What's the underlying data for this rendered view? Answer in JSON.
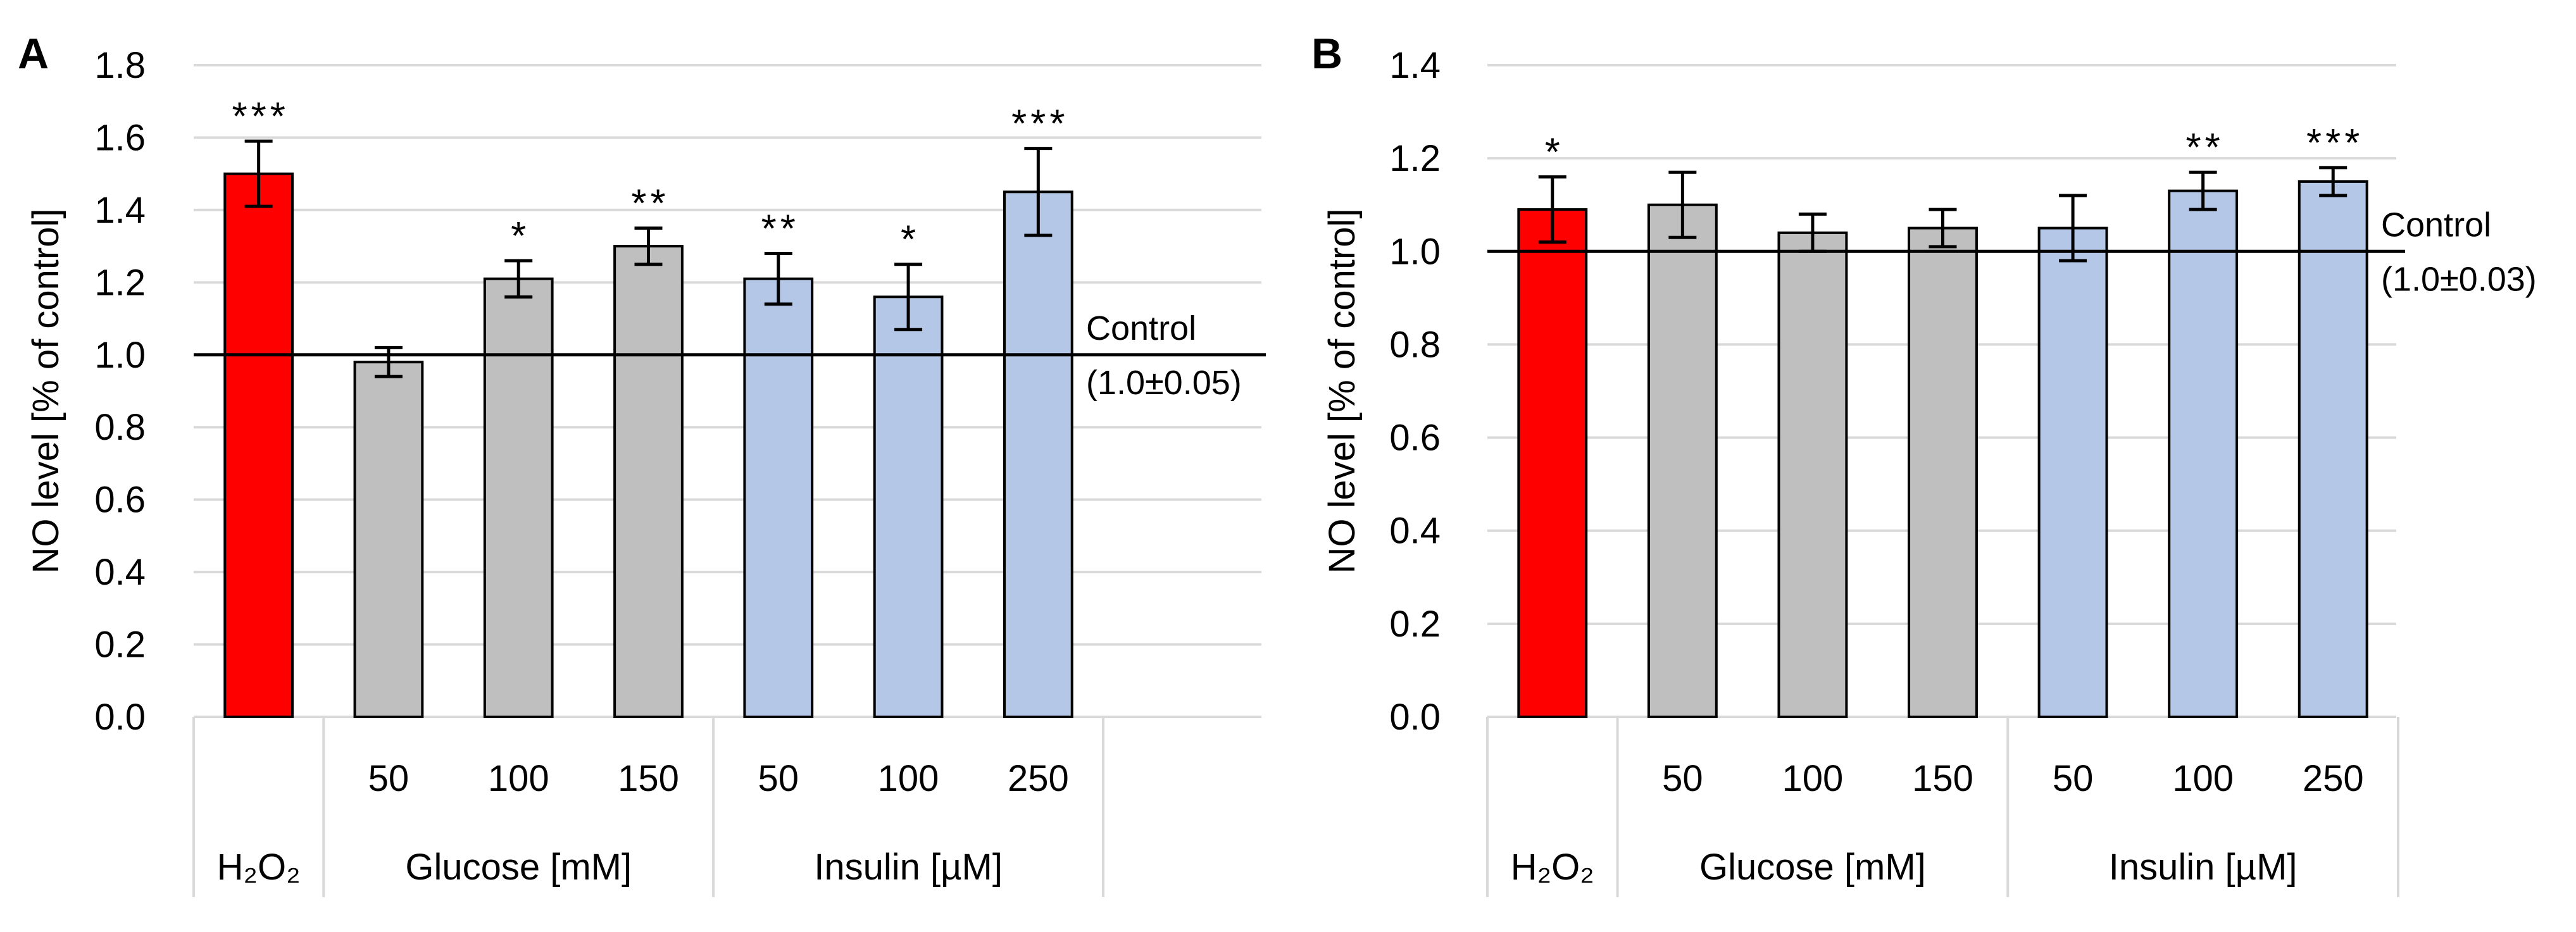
{
  "colors": {
    "h2o2": "#ff0000",
    "glucose": "#bfbfbf",
    "insulin": "#b4c7e7",
    "grid": "#d9d9d9",
    "axis": "#000000"
  },
  "chart_data": [
    {
      "panel": "A",
      "type": "bar",
      "title": "",
      "xlabel": "",
      "ylabel": "NO level [% of control]",
      "ylim": [
        0.0,
        1.8
      ],
      "yticks": [
        "0.0",
        "0.2",
        "0.4",
        "0.6",
        "0.8",
        "1.0",
        "1.2",
        "1.4",
        "1.6",
        "1.8"
      ],
      "grid": true,
      "groups": [
        {
          "label": "H₂O₂",
          "color_key": "h2o2"
        },
        {
          "label": "Glucose [mM]",
          "color_key": "glucose"
        },
        {
          "label": "Insulin [µM]",
          "color_key": "insulin"
        }
      ],
      "categories": [
        "",
        "50",
        "100",
        "150",
        "50",
        "100",
        "250"
      ],
      "bar_group": [
        0,
        1,
        1,
        1,
        2,
        2,
        2
      ],
      "values": [
        1.5,
        0.98,
        1.21,
        1.3,
        1.21,
        1.16,
        1.45
      ],
      "errors": [
        0.09,
        0.04,
        0.05,
        0.05,
        0.07,
        0.09,
        0.12
      ],
      "significance": [
        "***",
        "",
        "*",
        "**",
        "**",
        "*",
        "***"
      ],
      "control": {
        "value": 1.0,
        "label": "Control",
        "sublabel": "(1.0±0.05)"
      }
    },
    {
      "panel": "B",
      "type": "bar",
      "title": "",
      "xlabel": "",
      "ylabel": "NO level [% of control]",
      "ylim": [
        0.0,
        1.4
      ],
      "yticks": [
        "0.0",
        "0.2",
        "0.4",
        "0.6",
        "0.8",
        "1.0",
        "1.2",
        "1.4"
      ],
      "grid": true,
      "groups": [
        {
          "label": "H₂O₂",
          "color_key": "h2o2"
        },
        {
          "label": "Glucose [mM]",
          "color_key": "glucose"
        },
        {
          "label": "Insulin [µM]",
          "color_key": "insulin"
        }
      ],
      "categories": [
        "",
        "50",
        "100",
        "150",
        "50",
        "100",
        "250"
      ],
      "bar_group": [
        0,
        1,
        1,
        1,
        2,
        2,
        2
      ],
      "values": [
        1.09,
        1.1,
        1.04,
        1.05,
        1.05,
        1.13,
        1.15
      ],
      "errors": [
        0.07,
        0.07,
        0.04,
        0.04,
        0.07,
        0.04,
        0.03
      ],
      "significance": [
        "*",
        "",
        "",
        "",
        "",
        "**",
        "***"
      ],
      "control": {
        "value": 1.0,
        "label": "Control",
        "sublabel": "(1.0±0.03)"
      }
    }
  ]
}
